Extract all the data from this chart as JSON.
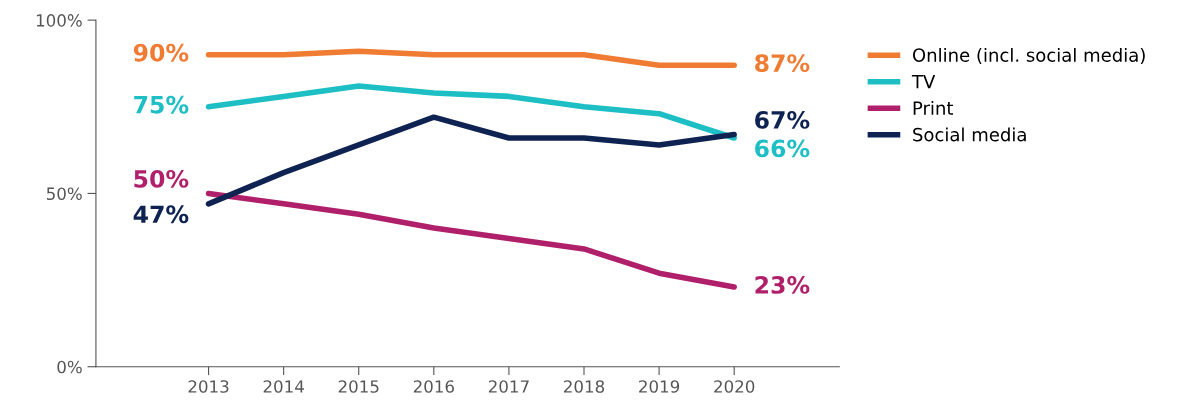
{
  "chart_data": {
    "type": "line",
    "x": [
      2013,
      2014,
      2015,
      2016,
      2017,
      2018,
      2019,
      2020
    ],
    "xlim": [
      2011.5,
      2021.4
    ],
    "xticks": [
      2013,
      2014,
      2015,
      2016,
      2017,
      2018,
      2019,
      2020
    ],
    "ylim": [
      0,
      100
    ],
    "yticks": [
      {
        "value": 0,
        "label": "0%"
      },
      {
        "value": 50,
        "label": "50%"
      },
      {
        "value": 100,
        "label": "100%"
      }
    ],
    "grid": false,
    "legend": "right",
    "marker": "none",
    "line_style": "solid",
    "series": [
      {
        "name": "Online (incl. social media)",
        "color": "#f07b32",
        "values": [
          90,
          90,
          91,
          90,
          90,
          90,
          87,
          87
        ],
        "value_labels": [
          "90%",
          null,
          null,
          null,
          null,
          null,
          null,
          "87%"
        ]
      },
      {
        "name": "TV",
        "color": "#1dbfc4",
        "values": [
          75,
          78,
          81,
          79,
          78,
          75,
          73,
          66
        ],
        "value_labels": [
          "75%",
          null,
          null,
          null,
          null,
          null,
          null,
          "66%"
        ]
      },
      {
        "name": "Print",
        "color": "#b0206a",
        "values": [
          50,
          47,
          44,
          40,
          37,
          34,
          27,
          23
        ],
        "value_labels": [
          "50%",
          null,
          null,
          null,
          null,
          null,
          null,
          "23%"
        ]
      },
      {
        "name": "Social media",
        "color": "#0f2353",
        "values": [
          47,
          56,
          64,
          72,
          66,
          66,
          64,
          67
        ],
        "value_labels": [
          "47%",
          null,
          null,
          null,
          null,
          null,
          null,
          "67%"
        ]
      }
    ]
  }
}
